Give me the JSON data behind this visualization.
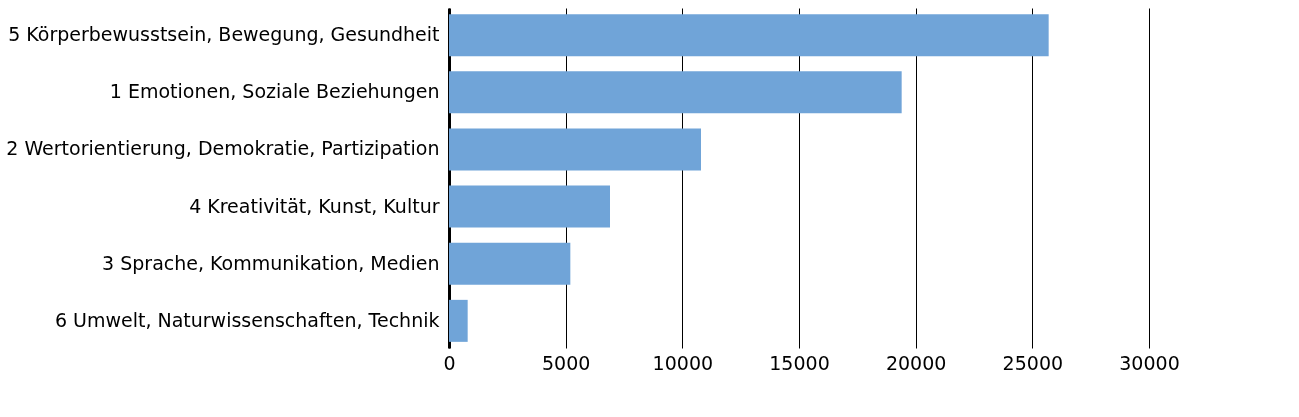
{
  "chart_data": {
    "type": "bar",
    "orientation": "horizontal",
    "categories": [
      "5 Körperbewusstsein, Bewegung, Gesundheit",
      "1 Emotionen, Soziale Beziehungen",
      "2 Wertorientierung, Demokratie, Partizipation",
      "4 Kreativität, Kunst, Kultur",
      "3 Sprache, Kommunikation, Medien",
      "6 Umwelt, Naturwissenschaften, Technik"
    ],
    "values": [
      25700,
      19400,
      10800,
      6900,
      5200,
      800
    ],
    "color": "#70a4d8",
    "xlim": [
      0,
      30000
    ],
    "xticks": [
      0,
      5000,
      10000,
      15000,
      20000,
      25000,
      30000
    ],
    "grid": "x"
  }
}
